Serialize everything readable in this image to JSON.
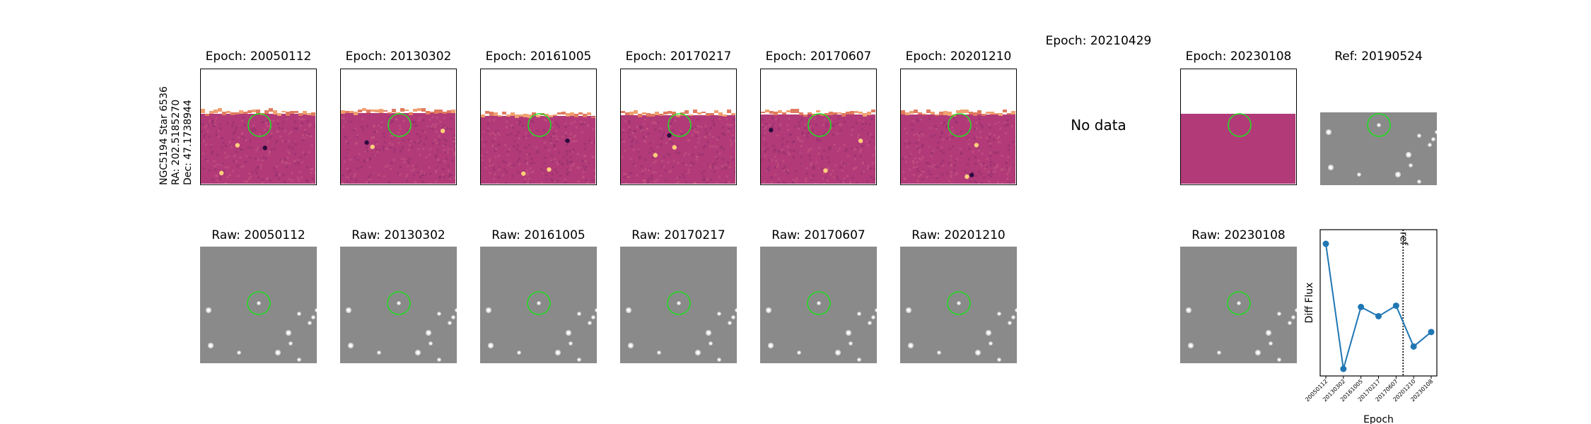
{
  "side_label": {
    "line1": "NGC5194 Star 6536",
    "line2": "RA: 202.5185270",
    "line3": "Dec: 47.1738944"
  },
  "top_row": [
    {
      "title": "Epoch: 20050112",
      "kind": "diff",
      "variant": 0
    },
    {
      "title": "Epoch: 20130302",
      "kind": "diff",
      "variant": 1
    },
    {
      "title": "Epoch: 20161005",
      "kind": "diff",
      "variant": 2
    },
    {
      "title": "Epoch: 20170217",
      "kind": "diff",
      "variant": 3
    },
    {
      "title": "Epoch: 20170607",
      "kind": "diff",
      "variant": 4
    },
    {
      "title": "Epoch: 20201210",
      "kind": "diff",
      "variant": 5
    },
    {
      "title": "Epoch: 20210429",
      "kind": "nodata",
      "message": "No data"
    },
    {
      "title": "Epoch: 20230108",
      "kind": "diff-flat",
      "variant": 6
    },
    {
      "title": "Ref: 20190524",
      "kind": "ref",
      "variant": 7
    }
  ],
  "bottom_row": [
    {
      "title": "Raw: 20050112",
      "variant": 0
    },
    {
      "title": "Raw: 20130302",
      "variant": 1
    },
    {
      "title": "Raw: 20161005",
      "variant": 2
    },
    {
      "title": "Raw: 20170217",
      "variant": 3
    },
    {
      "title": "Raw: 20170607",
      "variant": 4
    },
    {
      "title": "Raw: 20201210",
      "variant": 5
    },
    {
      "title": "Raw: 20230108",
      "variant": 6
    }
  ],
  "colors": {
    "aperture": "#22dd22",
    "series": "#1f77b4",
    "diff_base": "#b23a78",
    "raw_base": "#8a8a8a"
  },
  "chart_data": {
    "type": "line",
    "xlabel": "Epoch",
    "ylabel": "Diff Flux",
    "categories": [
      "20050112",
      "20130302",
      "20161005",
      "20170217",
      "20170607",
      "20201210",
      "20230108"
    ],
    "values": [
      0.95,
      0.0,
      0.47,
      0.4,
      0.48,
      0.17,
      0.28
    ],
    "ref_line": {
      "after_category": "20170607",
      "label": "ref"
    }
  }
}
